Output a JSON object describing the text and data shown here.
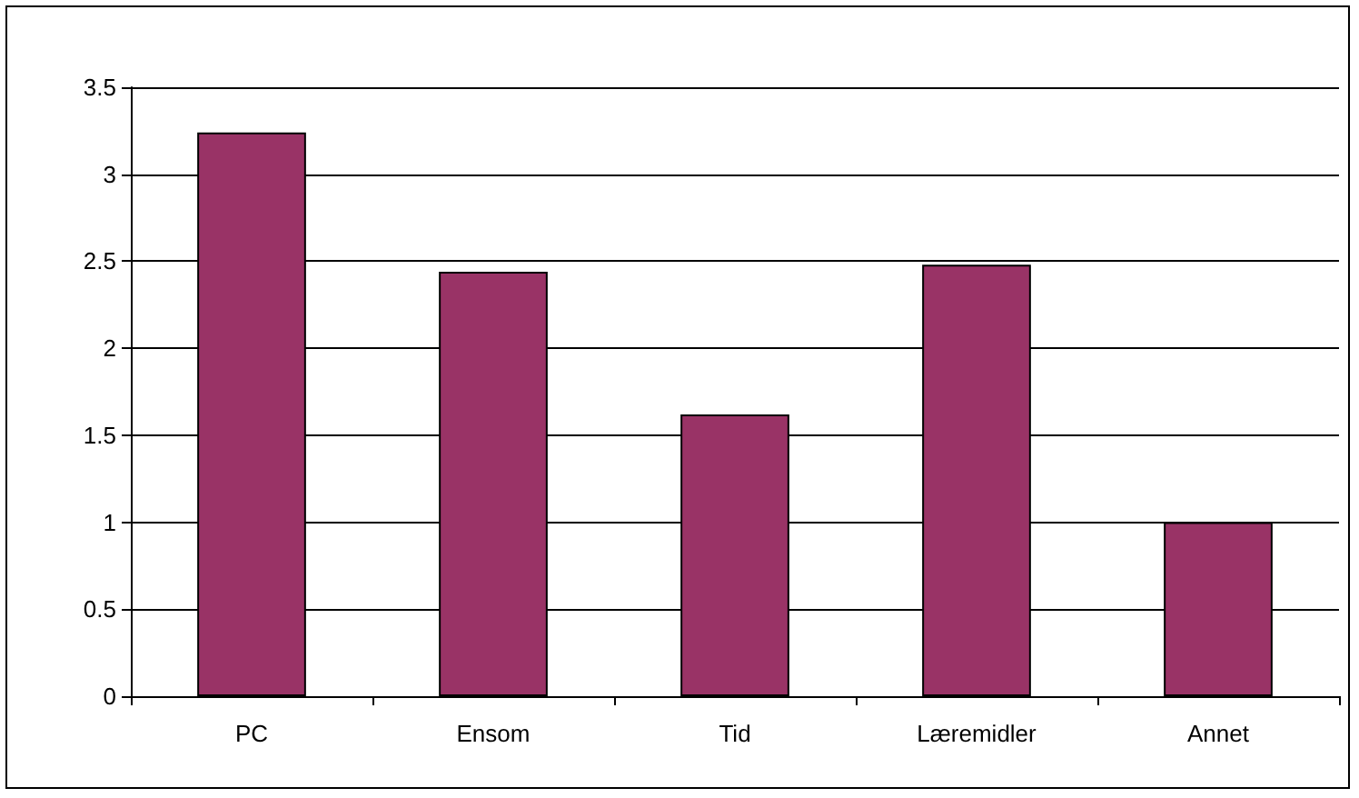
{
  "chart_data": {
    "type": "bar",
    "categories": [
      "PC",
      "Ensom",
      "Tid",
      "Læremidler",
      "Annet"
    ],
    "values": [
      3.24,
      2.44,
      1.62,
      2.48,
      1.0
    ],
    "color": "#993366",
    "ylim": [
      0,
      3.5
    ],
    "yticks": [
      0,
      0.5,
      1,
      1.5,
      2,
      2.5,
      3,
      3.5
    ],
    "grid": "y"
  }
}
